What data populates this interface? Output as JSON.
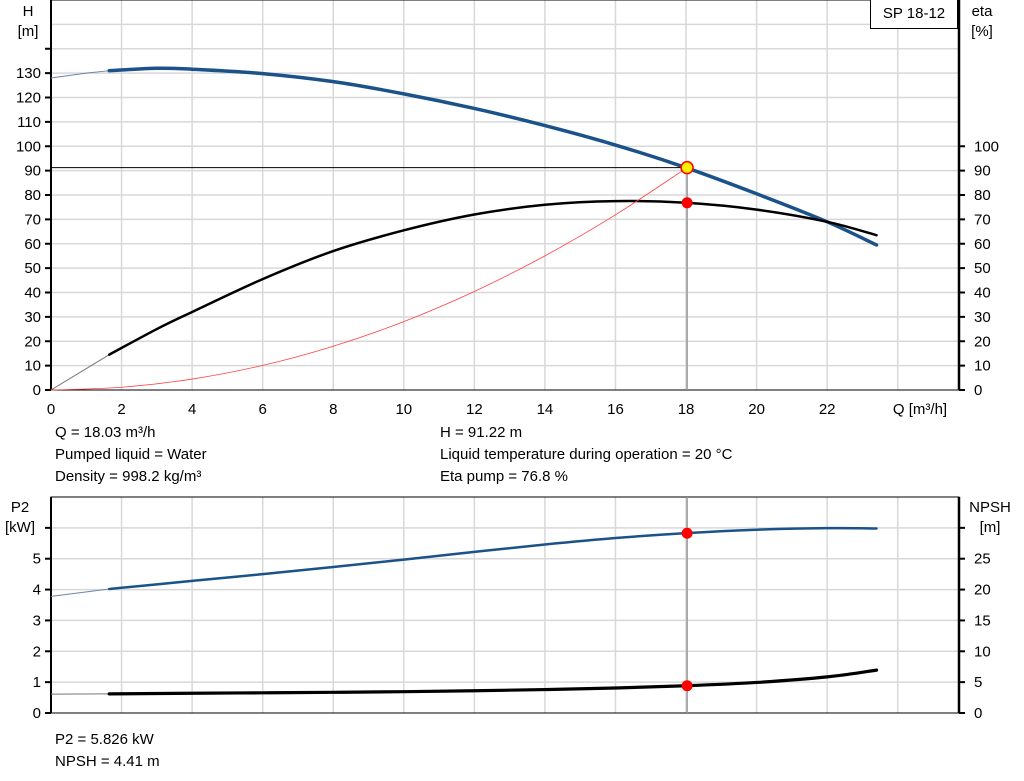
{
  "chart_data": [
    {
      "type": "line",
      "title": "SP 18-12",
      "xlabel": "Q [m³/h]",
      "ylabel_left": [
        "H",
        "[m]"
      ],
      "ylabel_right": [
        "eta",
        "[%]"
      ],
      "xlim": [
        0,
        25.6
      ],
      "ylim_left": [
        0,
        160
      ],
      "ylim_right": [
        0,
        160
      ],
      "x_ticks": [
        0,
        2,
        4,
        6,
        8,
        10,
        12,
        14,
        16,
        18,
        20,
        22
      ],
      "y_ticks_left": [
        0,
        10,
        20,
        30,
        40,
        50,
        60,
        70,
        80,
        90,
        100,
        110,
        120,
        130
      ],
      "y_ticks_right": [
        0,
        10,
        20,
        30,
        40,
        50,
        60,
        70,
        80,
        90,
        100
      ],
      "grid": true,
      "series": [
        {
          "name": "H",
          "axis": "left",
          "color": "#1a5289",
          "x_extrapolated": [
            0,
            1,
            1.65
          ],
          "y_extrapolated": [
            128,
            130,
            131
          ],
          "x": [
            1.65,
            3,
            4,
            6,
            8,
            10,
            12,
            14,
            16,
            18,
            20,
            22,
            23.4
          ],
          "y": [
            131,
            132,
            131.6,
            129.8,
            126.5,
            121.5,
            115.5,
            108.5,
            100.5,
            91.2,
            80.5,
            69,
            59.5
          ]
        },
        {
          "name": "eta",
          "axis": "right",
          "color": "#000000",
          "x_extrapolated": [
            0,
            1.65
          ],
          "y_extrapolated": [
            0,
            14.5
          ],
          "x": [
            1.65,
            3,
            4,
            6,
            8,
            10,
            12,
            14,
            16,
            18,
            20,
            22,
            23.4
          ],
          "y": [
            14.5,
            25,
            32,
            45.5,
            57,
            65.5,
            72,
            76,
            77.5,
            76.8,
            74,
            69,
            63.5
          ]
        },
        {
          "name": "system curve",
          "axis": "left",
          "color": "#ff4040",
          "x": [
            0,
            2,
            4,
            6,
            8,
            10,
            12,
            14,
            16,
            18.03
          ],
          "y": [
            0,
            1.12,
            4.49,
            10.1,
            17.97,
            28.07,
            40.43,
            55.02,
            71.87,
            91.22
          ]
        }
      ],
      "duty_point": {
        "q": 18.03,
        "h": 91.22,
        "eta": 76.8
      }
    },
    {
      "type": "line",
      "xlim": [
        0,
        25.6
      ],
      "ylabel_left": [
        "P2",
        "[kW]"
      ],
      "ylabel_right": [
        "NPSH",
        "[m]"
      ],
      "ylim_left": [
        0,
        7
      ],
      "ylim_right": [
        0,
        35
      ],
      "y_ticks_left": [
        0,
        1,
        2,
        3,
        4,
        5
      ],
      "y_ticks_right": [
        0,
        5,
        10,
        15,
        20,
        25
      ],
      "grid": true,
      "series": [
        {
          "name": "P2",
          "axis": "left",
          "color": "#1a5289",
          "x_extrapolated": [
            0,
            1.65
          ],
          "y_extrapolated": [
            3.78,
            4.02
          ],
          "x": [
            1.65,
            4,
            6,
            8,
            10,
            12,
            14,
            16,
            18,
            20,
            22,
            23.4
          ],
          "y": [
            4.02,
            4.28,
            4.5,
            4.73,
            4.97,
            5.22,
            5.46,
            5.67,
            5.83,
            5.94,
            5.99,
            5.98
          ]
        },
        {
          "name": "NPSH",
          "axis": "right",
          "color": "#000000",
          "x_extrapolated": [
            0,
            1.65
          ],
          "y_extrapolated": [
            3.05,
            3.1
          ],
          "x": [
            1.65,
            4,
            6,
            8,
            10,
            12,
            14,
            16,
            18,
            20,
            22,
            23.4
          ],
          "y": [
            3.1,
            3.2,
            3.27,
            3.35,
            3.45,
            3.6,
            3.8,
            4.05,
            4.41,
            4.95,
            5.85,
            6.95
          ]
        }
      ],
      "duty_point": {
        "q": 18.03,
        "p2": 5.826,
        "npsh": 4.41
      }
    }
  ],
  "info_top": {
    "q": "Q = 18.03 m³/h",
    "liquid": "Pumped liquid = Water",
    "density": "Density = 998.2 kg/m³",
    "h": "H = 91.22 m",
    "temperature": "Liquid temperature during operation = 20 °C",
    "eta": "Eta pump = 76.8 %"
  },
  "info_bottom": {
    "p2": "P2 = 5.826 kW",
    "npsh": "NPSH = 4.41 m"
  }
}
